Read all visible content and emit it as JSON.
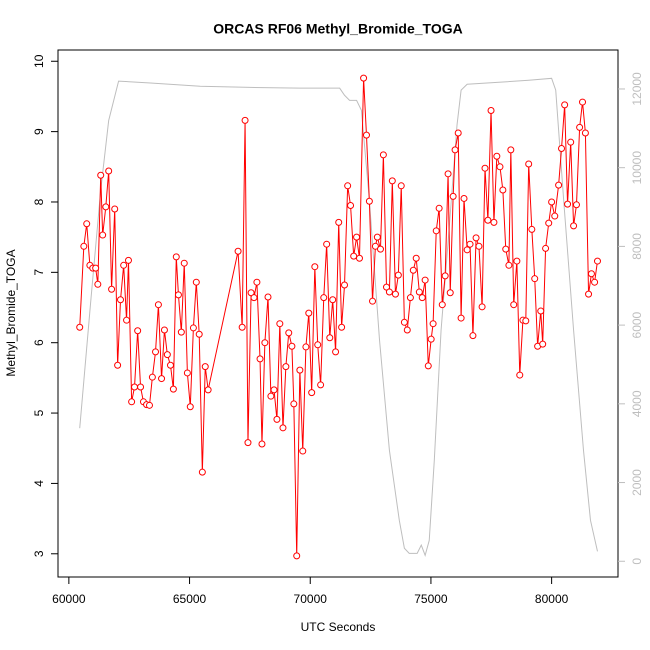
{
  "chart_data": {
    "type": "line",
    "title": "ORCAS RF06 Methyl_Bromide_TOGA",
    "xlabel": "UTC Seconds",
    "ylabel": "Methyl_Bromide_TOGA",
    "xlim": [
      59550,
      82750
    ],
    "ylim": [
      2.67,
      10.16
    ],
    "y2lim": [
      -400,
      12990
    ],
    "xticks": [
      60000,
      65000,
      70000,
      75000,
      80000
    ],
    "yticks": [
      3,
      4,
      5,
      6,
      7,
      8,
      9,
      10
    ],
    "y2ticks": [
      0,
      2000,
      4000,
      6000,
      8000,
      10000,
      12000
    ],
    "series": [
      {
        "color": "#ff0000",
        "axis": "y",
        "markers": true,
        "x": [
          60450,
          60620,
          60740,
          60870,
          60990,
          61110,
          61200,
          61320,
          61400,
          61530,
          61650,
          61770,
          61900,
          62020,
          62140,
          62270,
          62390,
          62470,
          62600,
          62720,
          62850,
          62970,
          63090,
          63220,
          63340,
          63460,
          63590,
          63710,
          63840,
          63960,
          64080,
          64210,
          64330,
          64450,
          64540,
          64660,
          64780,
          64910,
          65030,
          65160,
          65280,
          65400,
          65530,
          65650,
          65770,
          67010,
          67180,
          67300,
          67420,
          67550,
          67670,
          67790,
          67920,
          68000,
          68120,
          68250,
          68370,
          68500,
          68620,
          68740,
          68870,
          68990,
          69110,
          69240,
          69320,
          69440,
          69570,
          69690,
          69820,
          69940,
          70060,
          70190,
          70310,
          70430,
          70560,
          70680,
          70810,
          70930,
          71050,
          71180,
          71300,
          71420,
          71550,
          71670,
          71800,
          71920,
          72040,
          72210,
          72330,
          72450,
          72580,
          72700,
          72780,
          72910,
          73030,
          73160,
          73280,
          73400,
          73530,
          73650,
          73770,
          73900,
          74020,
          74150,
          74270,
          74390,
          74520,
          74640,
          74760,
          74890,
          75010,
          75090,
          75220,
          75340,
          75470,
          75590,
          75710,
          75800,
          75920,
          76000,
          76130,
          76250,
          76370,
          76500,
          76620,
          76740,
          76870,
          76990,
          77120,
          77240,
          77360,
          77490,
          77610,
          77730,
          77860,
          77980,
          78100,
          78230,
          78310,
          78430,
          78560,
          78680,
          78810,
          78930,
          79050,
          79180,
          79300,
          79420,
          79550,
          79630,
          79750,
          79880,
          80000,
          80130,
          80290,
          80410,
          80540,
          80660,
          80790,
          80910,
          81030,
          81160,
          81280,
          81400,
          81530,
          81650,
          81780,
          81900
        ],
        "values": [
          6.22,
          7.37,
          7.69,
          7.1,
          7.06,
          7.06,
          6.83,
          8.38,
          7.53,
          7.93,
          8.44,
          6.76,
          7.9,
          5.68,
          6.61,
          7.1,
          6.32,
          7.17,
          5.16,
          5.37,
          6.17,
          5.37,
          5.16,
          5.12,
          5.11,
          5.51,
          5.87,
          6.54,
          5.49,
          6.18,
          5.83,
          5.68,
          5.34,
          7.22,
          6.68,
          6.15,
          7.13,
          5.57,
          5.09,
          6.21,
          6.86,
          6.12,
          4.16,
          5.66,
          5.33,
          7.3,
          6.22,
          9.16,
          4.58,
          6.71,
          6.64,
          6.86,
          5.77,
          4.56,
          6.0,
          6.65,
          5.24,
          5.33,
          4.91,
          6.27,
          4.79,
          5.66,
          6.14,
          5.95,
          5.13,
          2.97,
          5.61,
          4.46,
          5.94,
          6.42,
          5.29,
          7.08,
          5.97,
          5.4,
          6.64,
          7.4,
          6.07,
          6.61,
          5.87,
          7.71,
          6.22,
          6.82,
          8.23,
          7.95,
          7.23,
          7.5,
          7.2,
          9.76,
          8.95,
          8.01,
          6.59,
          7.37,
          7.5,
          7.33,
          8.67,
          6.79,
          6.72,
          8.3,
          6.69,
          6.96,
          8.23,
          6.29,
          6.18,
          6.64,
          7.03,
          7.2,
          6.72,
          6.64,
          6.89,
          5.67,
          6.05,
          6.27,
          7.59,
          7.91,
          6.54,
          6.95,
          8.4,
          6.71,
          8.08,
          8.74,
          8.98,
          6.35,
          8.05,
          7.32,
          7.4,
          6.1,
          7.49,
          7.37,
          6.51,
          8.48,
          7.74,
          9.3,
          7.71,
          8.65,
          8.5,
          8.17,
          7.33,
          7.1,
          8.74,
          6.54,
          7.16,
          5.54,
          6.32,
          6.31,
          8.54,
          7.61,
          6.91,
          5.95,
          6.45,
          5.98,
          7.34,
          7.7,
          8.0,
          7.8,
          8.24,
          8.76,
          9.38,
          7.97,
          8.85,
          7.66,
          7.96,
          9.06,
          9.42,
          8.98,
          6.69,
          6.98,
          6.86,
          7.16
        ]
      },
      {
        "color": "#bebebe",
        "axis": "y2",
        "markers": false,
        "x": [
          60450,
          60910,
          61320,
          61650,
          62060,
          63380,
          65440,
          67510,
          69570,
          71220,
          71420,
          71630,
          71920,
          72120,
          72450,
          72870,
          73280,
          73690,
          73900,
          74100,
          74430,
          74600,
          74760,
          74930,
          75140,
          75420,
          75750,
          76080,
          76250,
          76500,
          77820,
          79050,
          80000,
          80170,
          80500,
          80910,
          81320,
          81610,
          81900
        ],
        "values": [
          3380,
          6630,
          9430,
          11200,
          12200,
          12150,
          12070,
          12040,
          12020,
          12020,
          11840,
          11710,
          11710,
          11460,
          9170,
          5620,
          2820,
          1040,
          330,
          200,
          200,
          410,
          150,
          530,
          2570,
          5870,
          8410,
          11080,
          11970,
          12120,
          12170,
          12220,
          12270,
          11970,
          9170,
          5870,
          2820,
          1040,
          250
        ]
      }
    ]
  }
}
